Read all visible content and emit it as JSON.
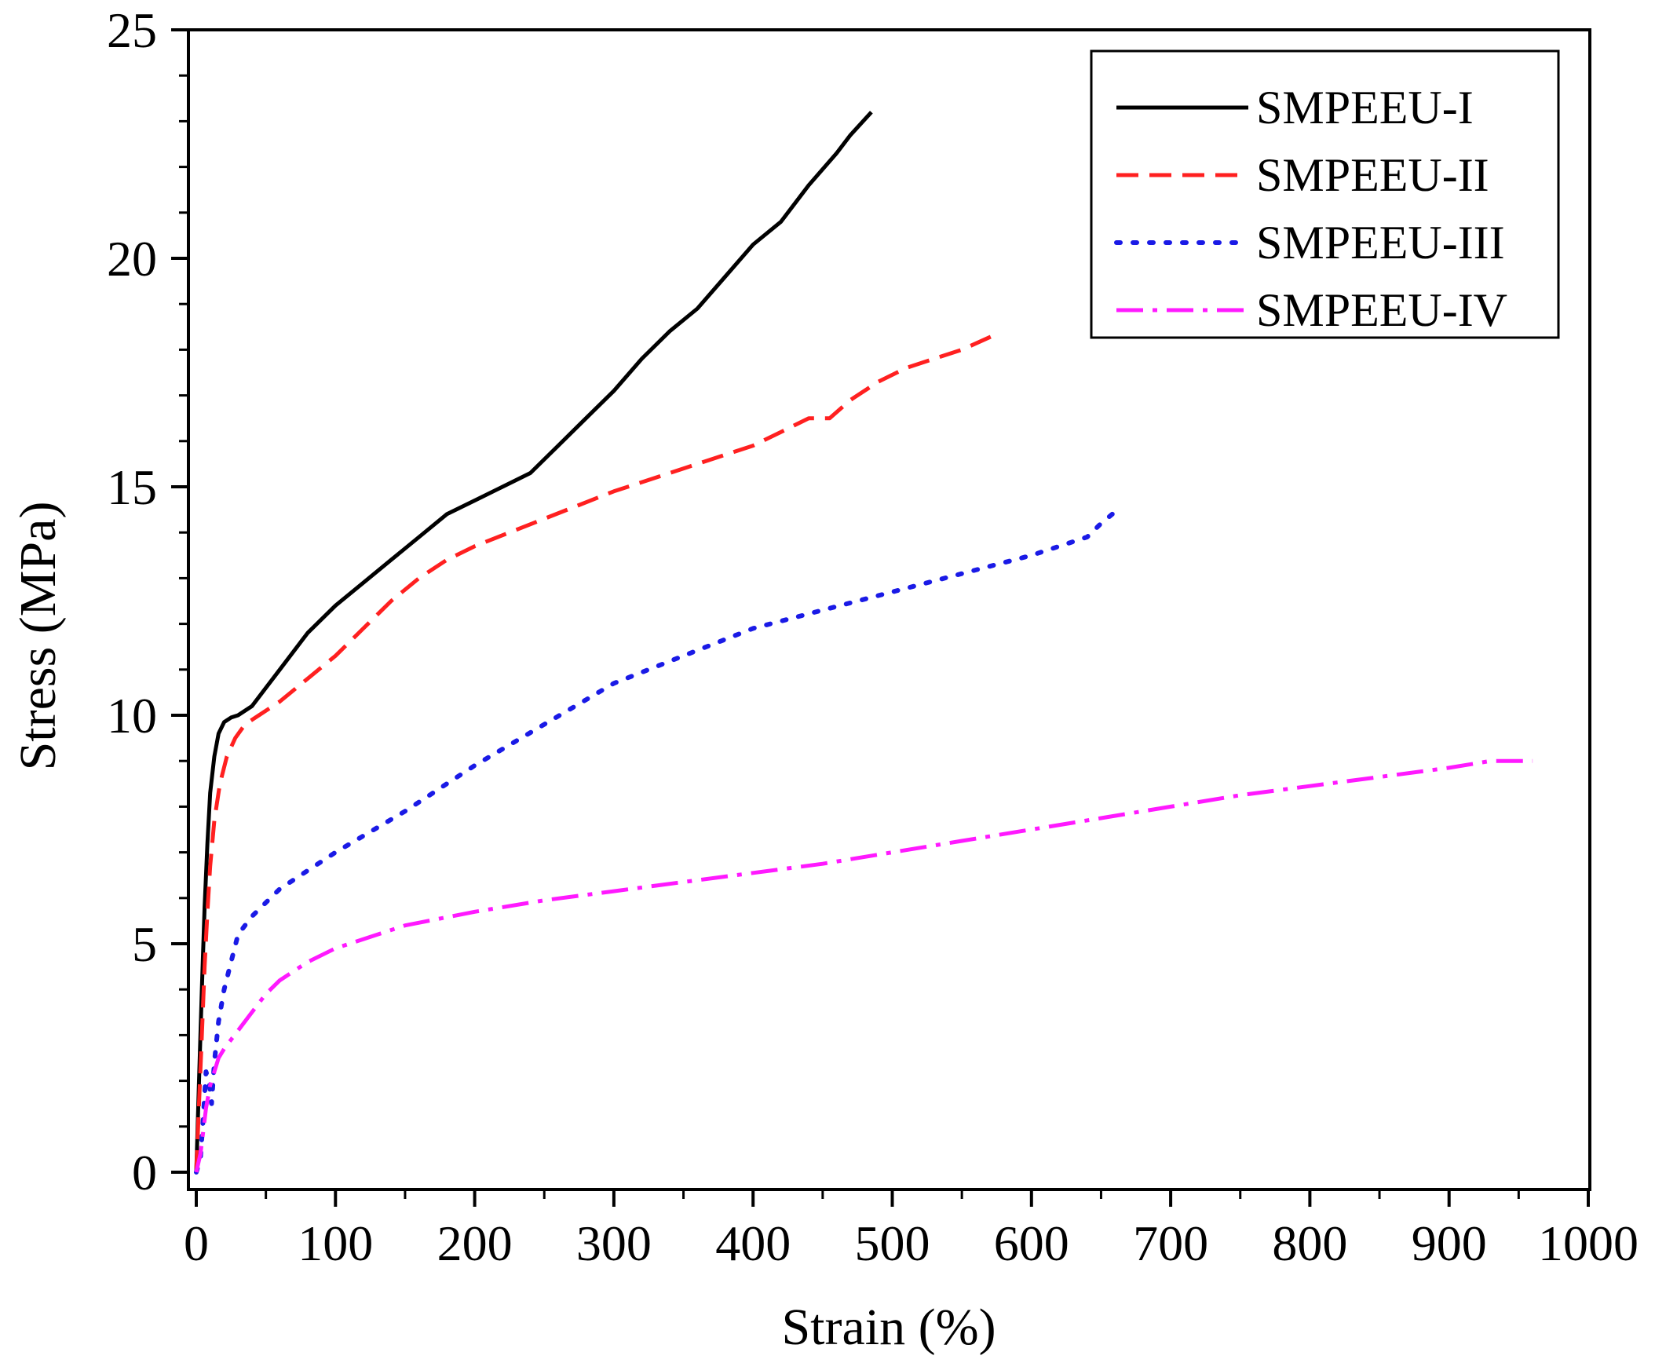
{
  "chart_data": {
    "type": "line",
    "title": "",
    "xlabel": "Strain (%)",
    "ylabel": "Stress (MPa)",
    "xlim": [
      0,
      1000
    ],
    "ylim": [
      0,
      25
    ],
    "xticks": [
      0,
      100,
      200,
      300,
      400,
      500,
      600,
      700,
      800,
      900,
      1000
    ],
    "yticks": [
      0,
      5,
      10,
      15,
      20,
      25
    ],
    "xtick_labels": [
      "0",
      "100",
      "200",
      "300",
      "400",
      "500",
      "600",
      "700",
      "800",
      "900",
      "1000"
    ],
    "ytick_labels": [
      "0",
      "5",
      "10",
      "15",
      "20",
      "25"
    ],
    "grid": false,
    "legend_position": "top-right",
    "series": [
      {
        "name": "SMPEEU-I",
        "color": "#000000",
        "style": "solid",
        "x": [
          0,
          2,
          4,
          6,
          8,
          10,
          13,
          16,
          20,
          25,
          30,
          40,
          50,
          60,
          80,
          100,
          120,
          140,
          160,
          180,
          200,
          220,
          240,
          260,
          280,
          300,
          320,
          340,
          360,
          380,
          400,
          420,
          440,
          460,
          470,
          485
        ],
        "y": [
          0,
          2.0,
          4.0,
          5.8,
          7.2,
          8.3,
          9.1,
          9.6,
          9.85,
          9.95,
          10.0,
          10.2,
          10.6,
          11.0,
          11.8,
          12.4,
          12.9,
          13.4,
          13.9,
          14.4,
          14.7,
          15.0,
          15.3,
          15.9,
          16.5,
          17.1,
          17.8,
          18.4,
          18.9,
          19.6,
          20.3,
          20.8,
          21.6,
          22.3,
          22.7,
          23.2
        ]
      },
      {
        "name": "SMPEEU-II",
        "color": "#ff2020",
        "style": "dashed",
        "x": [
          0,
          2,
          4,
          6,
          8,
          10,
          13,
          17,
          22,
          28,
          35,
          45,
          60,
          80,
          100,
          120,
          140,
          160,
          180,
          200,
          250,
          300,
          350,
          400,
          420,
          440,
          455,
          470,
          490,
          510,
          530,
          550,
          572
        ],
        "y": [
          0,
          1.5,
          3.0,
          4.5,
          5.7,
          6.7,
          7.7,
          8.5,
          9.1,
          9.5,
          9.8,
          10.0,
          10.3,
          10.8,
          11.3,
          11.9,
          12.5,
          13.0,
          13.4,
          13.7,
          14.3,
          14.9,
          15.4,
          15.9,
          16.2,
          16.5,
          16.5,
          16.9,
          17.3,
          17.6,
          17.8,
          18.0,
          18.3
        ]
      },
      {
        "name": "SMPEEU-III",
        "color": "#1a1ae6",
        "style": "dotted",
        "x": [
          0,
          3,
          5,
          7,
          9,
          11,
          13,
          16,
          20,
          25,
          30,
          40,
          50,
          60,
          80,
          100,
          150,
          200,
          250,
          300,
          350,
          400,
          450,
          500,
          550,
          600,
          620,
          640,
          650,
          662
        ],
        "y": [
          0,
          0.3,
          1.2,
          2.2,
          2.0,
          1.5,
          2.4,
          3.3,
          4.0,
          4.6,
          5.2,
          5.6,
          5.9,
          6.2,
          6.6,
          7.0,
          7.9,
          8.9,
          9.8,
          10.7,
          11.3,
          11.9,
          12.3,
          12.7,
          13.1,
          13.5,
          13.7,
          13.9,
          14.2,
          14.5
        ]
      },
      {
        "name": "SMPEEU-IV",
        "color": "#ff19ff",
        "style": "dashdot",
        "x": [
          0,
          3,
          5,
          7,
          10,
          13,
          16,
          20,
          25,
          30,
          40,
          50,
          60,
          80,
          100,
          150,
          200,
          250,
          300,
          350,
          400,
          450,
          500,
          550,
          600,
          650,
          700,
          750,
          800,
          850,
          900,
          930,
          960
        ],
        "y": [
          0,
          0.4,
          0.9,
          1.4,
          1.9,
          2.2,
          2.5,
          2.7,
          2.9,
          3.1,
          3.5,
          3.9,
          4.2,
          4.6,
          4.9,
          5.4,
          5.7,
          5.95,
          6.15,
          6.35,
          6.55,
          6.75,
          7.0,
          7.25,
          7.5,
          7.75,
          8.0,
          8.25,
          8.45,
          8.65,
          8.85,
          9.0,
          9.0
        ]
      }
    ]
  }
}
